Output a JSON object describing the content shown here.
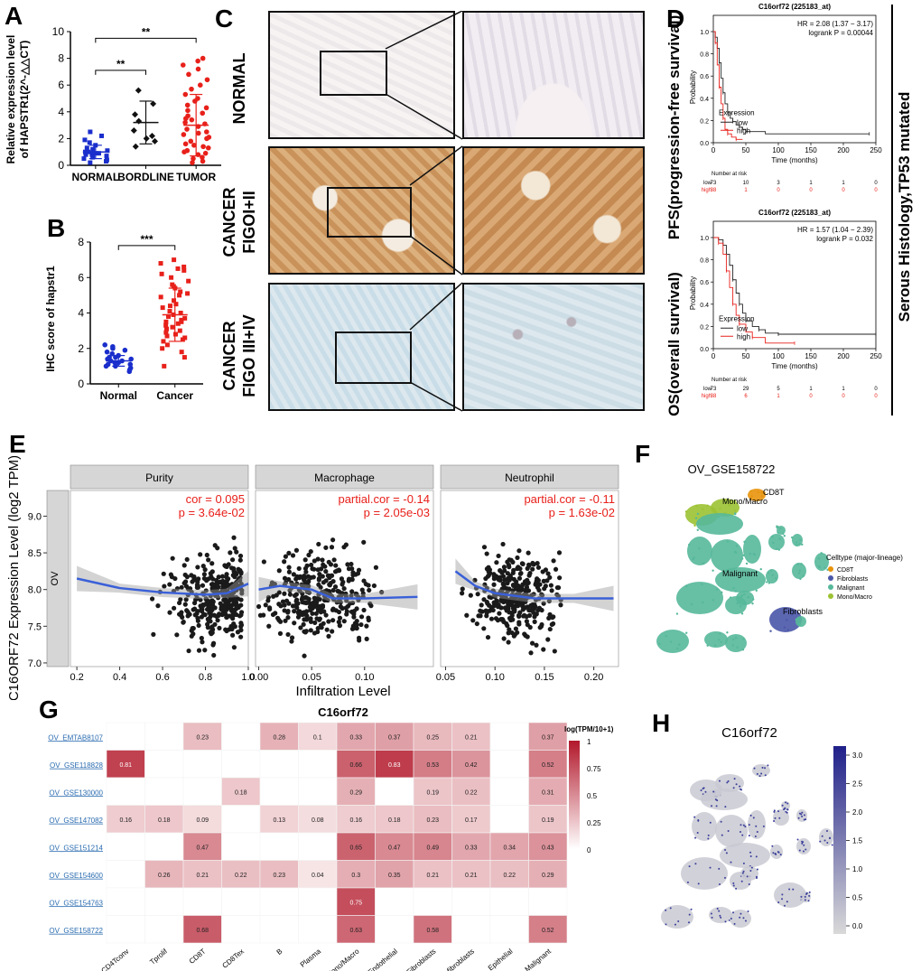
{
  "panels": {
    "A": "A",
    "B": "B",
    "C": "C",
    "D": "D",
    "E": "E",
    "F": "F",
    "G": "G",
    "H": "H"
  },
  "colors": {
    "normal": "#1a2ecc",
    "red": "#e8201a",
    "blue_line": "#3a60d8",
    "heat_dark": "#b2182b"
  },
  "chart_data": [
    {
      "id": "A",
      "type": "scatter",
      "ylabel_lines": [
        "Relative expression level",
        "of HAPSTR1(2^-△△CT)"
      ],
      "categories": [
        "NORMAL",
        "BORDLINE",
        "TUMOR"
      ],
      "ylim": [
        0,
        10
      ],
      "yticks": [
        0,
        2,
        4,
        6,
        8,
        10
      ],
      "means": [
        1.0,
        3.2,
        3.0
      ],
      "sd": [
        0.5,
        1.6,
        2.3
      ],
      "points": [
        [
          0.3,
          0.4,
          0.5,
          0.6,
          0.7,
          0.8,
          0.8,
          0.9,
          0.9,
          1.0,
          1.0,
          1.1,
          1.2,
          1.3,
          1.5,
          1.7,
          1.9,
          2.2,
          2.5,
          0.2
        ],
        [
          1.4,
          1.8,
          2.2,
          2.6,
          3.3,
          3.8,
          4.6,
          5.6,
          2.0
        ],
        [
          0.2,
          0.3,
          0.5,
          0.6,
          0.8,
          1.0,
          1.1,
          1.3,
          1.5,
          1.6,
          1.8,
          2.0,
          2.1,
          2.3,
          2.5,
          2.7,
          2.9,
          3.1,
          3.2,
          3.4,
          3.5,
          3.7,
          3.9,
          4.1,
          4.3,
          4.5,
          4.8,
          5.0,
          5.3,
          5.7,
          6.0,
          6.4,
          6.8,
          7.2,
          7.5,
          7.8,
          8.0,
          0.9,
          1.4,
          2.4
        ]
      ],
      "brackets": [
        {
          "from": 0,
          "to": 1,
          "label": "**"
        },
        {
          "from": 0,
          "to": 2,
          "label": "**"
        }
      ]
    },
    {
      "id": "B",
      "type": "scatter",
      "ylabel": "IHC score of  hapstr1",
      "categories": [
        "Normal",
        "Cancer"
      ],
      "ylim": [
        0,
        8
      ],
      "yticks": [
        0,
        2,
        4,
        6,
        8
      ],
      "means": [
        1.3,
        3.9
      ],
      "sd": [
        0.3,
        1.5
      ],
      "points": [
        [
          0.8,
          0.9,
          1.0,
          1.0,
          1.1,
          1.1,
          1.2,
          1.2,
          1.3,
          1.3,
          1.4,
          1.4,
          1.5,
          1.5,
          1.6,
          1.7,
          1.8,
          1.9,
          2.0,
          2.1,
          2.2,
          0.7
        ],
        [
          1.0,
          1.5,
          1.8,
          2.0,
          2.2,
          2.4,
          2.5,
          2.7,
          2.8,
          3.0,
          3.1,
          3.2,
          3.3,
          3.4,
          3.5,
          3.6,
          3.7,
          3.8,
          4.0,
          4.1,
          4.3,
          4.5,
          4.7,
          4.9,
          5.0,
          5.2,
          5.4,
          5.5,
          5.6,
          5.8,
          6.0,
          6.2,
          6.4,
          6.6,
          6.8,
          7.0,
          2.9,
          3.5,
          4.4,
          5.1,
          6.5,
          2.6,
          3.9
        ]
      ],
      "brackets": [
        {
          "from": 0,
          "to": 1,
          "label": "***"
        }
      ]
    },
    {
      "id": "D1",
      "type": "line",
      "title": "C16orf72 (225183_at)",
      "hr": "HR = 2.08 (1.37 − 3.17)",
      "logrank": "logrank P = 0.00044",
      "ylabel": "Probability",
      "xlabel": "Time (months)",
      "xticks": [
        0,
        50,
        100,
        150,
        200,
        250
      ],
      "yticks": [
        0.0,
        0.2,
        0.4,
        0.6,
        0.8,
        1.0
      ],
      "xlim": [
        0,
        250
      ],
      "ylim": [
        0,
        1
      ],
      "legend_title": "Expression",
      "legend": [
        "low",
        "high"
      ],
      "series": [
        {
          "name": "low",
          "x": [
            0,
            3,
            6,
            9,
            12,
            15,
            18,
            22,
            26,
            30,
            35,
            40,
            45,
            50,
            80,
            240
          ],
          "y": [
            1.0,
            0.95,
            0.85,
            0.72,
            0.58,
            0.45,
            0.35,
            0.27,
            0.22,
            0.19,
            0.16,
            0.14,
            0.12,
            0.1,
            0.08,
            0.08
          ]
        },
        {
          "name": "high",
          "x": [
            0,
            3,
            6,
            9,
            12,
            15,
            18,
            22,
            28,
            35,
            45
          ],
          "y": [
            1.0,
            0.9,
            0.7,
            0.5,
            0.35,
            0.22,
            0.12,
            0.08,
            0.05,
            0.03,
            0.03
          ]
        }
      ],
      "risk_title": "Number at risk",
      "risk": [
        {
          "name": "low",
          "values": [
            "73",
            "10",
            "3",
            "1",
            "1",
            "0"
          ]
        },
        {
          "name": "high",
          "values": [
            "38",
            "1",
            "0",
            "0",
            "0",
            "0"
          ]
        }
      ]
    },
    {
      "id": "D2",
      "type": "line",
      "title": "C16orf72 (225183_at)",
      "hr": "HR = 1.57 (1.04 − 2.39)",
      "logrank": "logrank P = 0.032",
      "ylabel": "Probability",
      "xlabel": "Time (months)",
      "xticks": [
        0,
        50,
        100,
        150,
        200,
        250
      ],
      "yticks": [
        0.0,
        0.2,
        0.4,
        0.6,
        0.8,
        1.0
      ],
      "xlim": [
        0,
        250
      ],
      "ylim": [
        0,
        1
      ],
      "legend_title": "Expression",
      "legend": [
        "low",
        "high"
      ],
      "series": [
        {
          "name": "low",
          "x": [
            0,
            8,
            15,
            20,
            25,
            30,
            35,
            40,
            45,
            50,
            60,
            70,
            80,
            100,
            120,
            250
          ],
          "y": [
            1.0,
            0.98,
            0.93,
            0.85,
            0.75,
            0.62,
            0.5,
            0.4,
            0.32,
            0.25,
            0.2,
            0.17,
            0.14,
            0.13,
            0.13,
            0.13
          ]
        },
        {
          "name": "high",
          "x": [
            0,
            8,
            15,
            20,
            25,
            30,
            35,
            40,
            50,
            60,
            80,
            125
          ],
          "y": [
            1.0,
            0.95,
            0.85,
            0.7,
            0.55,
            0.4,
            0.3,
            0.22,
            0.15,
            0.1,
            0.05,
            0.05
          ]
        }
      ],
      "risk_title": "Number at risk",
      "risk": [
        {
          "name": "low",
          "values": [
            "73",
            "29",
            "5",
            "1",
            "1",
            "0"
          ]
        },
        {
          "name": "high",
          "values": [
            "38",
            "6",
            "1",
            "0",
            "0",
            "0"
          ]
        }
      ]
    },
    {
      "id": "E",
      "type": "scatter",
      "ylabel": "C16ORF72 Expression Level (log2 TPM)",
      "xlabel": "Infiltration Level",
      "strip": "OV",
      "ylim": [
        6.95,
        9.35
      ],
      "yticks": [
        7.0,
        7.5,
        8.0,
        8.5,
        9.0
      ],
      "facets": [
        {
          "name": "Purity",
          "xlim": [
            0.17,
            1.0
          ],
          "xticks": [
            0.2,
            0.4,
            0.6,
            0.8,
            1.0
          ],
          "xtick_labels": [
            "0.2",
            "0.4",
            "0.6",
            "0.8",
            "1.0"
          ],
          "stat1": "cor = 0.095",
          "stat2": "p = 3.64e-02",
          "xc": 0.75,
          "xs": 0.14,
          "skew": true,
          "fit": [
            [
              0.2,
              8.15
            ],
            [
              0.4,
              8.02
            ],
            [
              0.6,
              7.96
            ],
            [
              0.8,
              7.93
            ],
            [
              0.9,
              7.95
            ],
            [
              1.0,
              8.08
            ]
          ]
        },
        {
          "name": "Macrophage",
          "xlim": [
            -0.003,
            0.165
          ],
          "xticks": [
            0.0,
            0.05,
            0.1
          ],
          "xtick_labels": [
            "0.00",
            "0.05",
            "0.10"
          ],
          "stat1": "partial.cor = -0.14",
          "stat2": "p = 2.05e-03",
          "xc": 0.055,
          "xs": 0.035,
          "skew": false,
          "fit": [
            [
              0.0,
              8.0
            ],
            [
              0.02,
              8.05
            ],
            [
              0.05,
              8.0
            ],
            [
              0.07,
              7.88
            ],
            [
              0.1,
              7.88
            ],
            [
              0.15,
              7.9
            ]
          ]
        },
        {
          "name": "Neutrophil",
          "xlim": [
            0.045,
            0.225
          ],
          "xticks": [
            0.05,
            0.1,
            0.15,
            0.2
          ],
          "xtick_labels": [
            "0.05",
            "0.10",
            "0.15",
            "0.20"
          ],
          "stat1": "partial.cor = -0.11",
          "stat2": "p = 1.63e-02",
          "xc": 0.12,
          "xs": 0.03,
          "skew": false,
          "fit": [
            [
              0.06,
              8.25
            ],
            [
              0.08,
              8.05
            ],
            [
              0.1,
              7.95
            ],
            [
              0.14,
              7.88
            ],
            [
              0.18,
              7.88
            ],
            [
              0.22,
              7.88
            ]
          ]
        }
      ]
    },
    {
      "id": "G",
      "type": "heatmap",
      "title": "C16orf72",
      "legend_title": "log(TPM/10+1)",
      "legend_ticks": [
        "1",
        "0.75",
        "0.5",
        "0.25",
        "0"
      ],
      "rows": [
        "OV_EMTAB8107",
        "OV_GSE118828",
        "OV_GSE130000",
        "OV_GSE147082",
        "OV_GSE151214",
        "OV_GSE154600",
        "OV_GSE154763",
        "OV_GSE158722"
      ],
      "cols": [
        "CD4Tconv",
        "Tprolif",
        "CD8T",
        "CD8Tex",
        "B",
        "Plasma",
        "Mono/Macro",
        "Endothelial",
        "Fibroblasts",
        "Myofibroblasts",
        "Epithelial",
        "Malignant"
      ],
      "values": [
        [
          null,
          null,
          0.23,
          null,
          0.28,
          0.1,
          0.33,
          0.37,
          0.25,
          0.21,
          null,
          0.37
        ],
        [
          0.81,
          null,
          null,
          null,
          null,
          null,
          0.66,
          0.83,
          0.53,
          0.42,
          null,
          0.52
        ],
        [
          null,
          null,
          null,
          0.18,
          null,
          null,
          0.29,
          null,
          0.19,
          0.22,
          null,
          0.31
        ],
        [
          0.16,
          0.18,
          0.09,
          null,
          0.13,
          0.08,
          0.16,
          0.18,
          0.23,
          0.17,
          null,
          0.19
        ],
        [
          null,
          null,
          0.47,
          null,
          null,
          null,
          0.65,
          0.47,
          0.49,
          0.33,
          0.34,
          0.43
        ],
        [
          null,
          0.26,
          0.21,
          0.22,
          0.23,
          0.04,
          0.3,
          0.35,
          0.21,
          0.21,
          0.22,
          0.29
        ],
        [
          null,
          null,
          null,
          null,
          null,
          null,
          0.75,
          null,
          null,
          null,
          null,
          null
        ],
        [
          null,
          null,
          0.68,
          null,
          null,
          null,
          0.63,
          null,
          0.58,
          null,
          null,
          0.52
        ]
      ]
    }
  ],
  "ihc": {
    "rows": [
      {
        "label": "NORMAL"
      },
      {
        "label": "CANCER\nFIGOI+II"
      },
      {
        "label": "CANCER\nFIGO III+IV"
      }
    ]
  },
  "D_side": {
    "top": "PFS(progression-free survival)",
    "bottom": "OS(overall survival)",
    "right": "Serous Histology,TP53 mutated"
  },
  "F": {
    "title": "OV_GSE158722",
    "legend_title": "Celltype (major-lineage)",
    "legend": [
      {
        "name": "CD8T",
        "color": "#e8930b"
      },
      {
        "name": "Fibroblasts",
        "color": "#4a57a8"
      },
      {
        "name": "Malignant",
        "color": "#56b89a"
      },
      {
        "name": "Mono/Macro",
        "color": "#9cc233"
      }
    ],
    "labels": [
      "CD8T",
      "Mono/Macro",
      "Malignant",
      "Fibroblasts"
    ]
  },
  "H": {
    "title": "C16orf72",
    "scale_ticks": [
      "3.0",
      "2.5",
      "2.0",
      "1.5",
      "1.0",
      "0.5",
      "0.0"
    ]
  }
}
